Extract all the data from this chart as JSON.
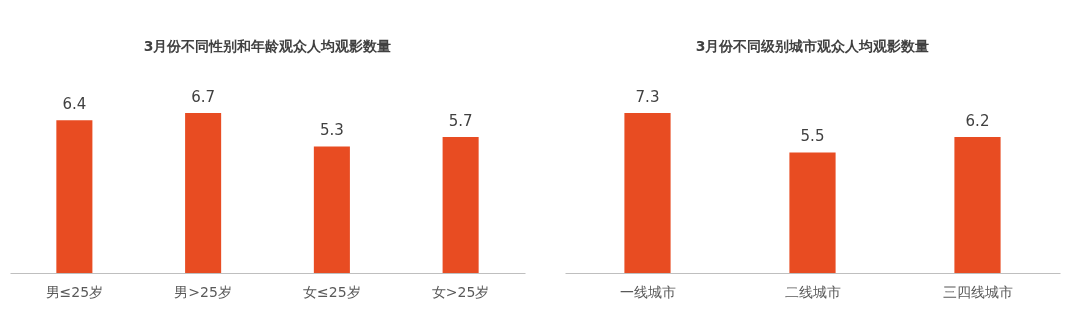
{
  "chart_data": [
    {
      "type": "bar",
      "title": "3月份不同性别和年龄观众人均观影数量",
      "categories": [
        "男≤25岁",
        "男>25岁",
        "女≤25岁",
        "女>25岁"
      ],
      "values": [
        6.4,
        6.7,
        5.3,
        5.7
      ],
      "color": "#e84c22",
      "data_labels": true
    },
    {
      "type": "bar",
      "title": "3月份不同级别城市观众人均观影数量",
      "categories": [
        "一线城市",
        "二线城市",
        "三四线城市"
      ],
      "values": [
        7.3,
        5.5,
        6.2
      ],
      "color": "#e84c22",
      "data_labels": true
    }
  ]
}
